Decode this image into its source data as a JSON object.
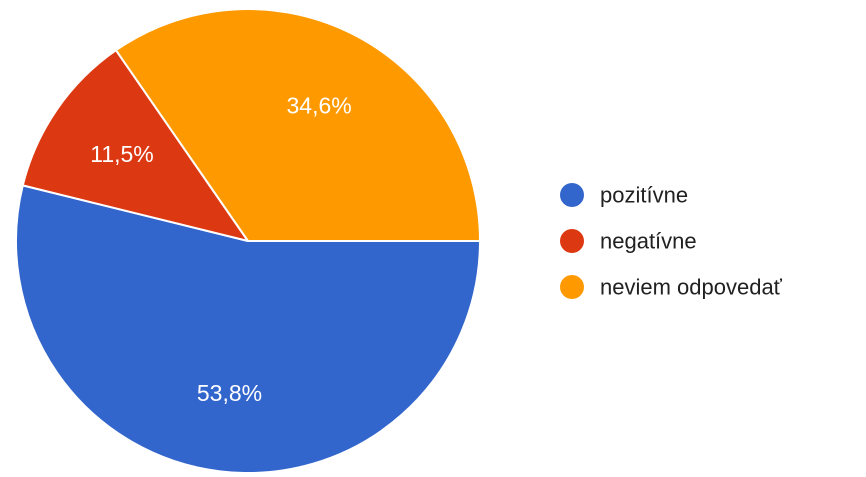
{
  "chart_data": {
    "type": "pie",
    "categories": [
      "pozitívne",
      "negatívne",
      "neviem odpovedať"
    ],
    "values": [
      53.8,
      11.5,
      34.6
    ],
    "value_labels": [
      "53,8%",
      "11,5%",
      "34,6%"
    ],
    "colors": [
      "#3366cc",
      "#dc3912",
      "#ff9900"
    ],
    "start_angle_deg": 90,
    "direction": "clockwise",
    "legend_position": "right"
  }
}
